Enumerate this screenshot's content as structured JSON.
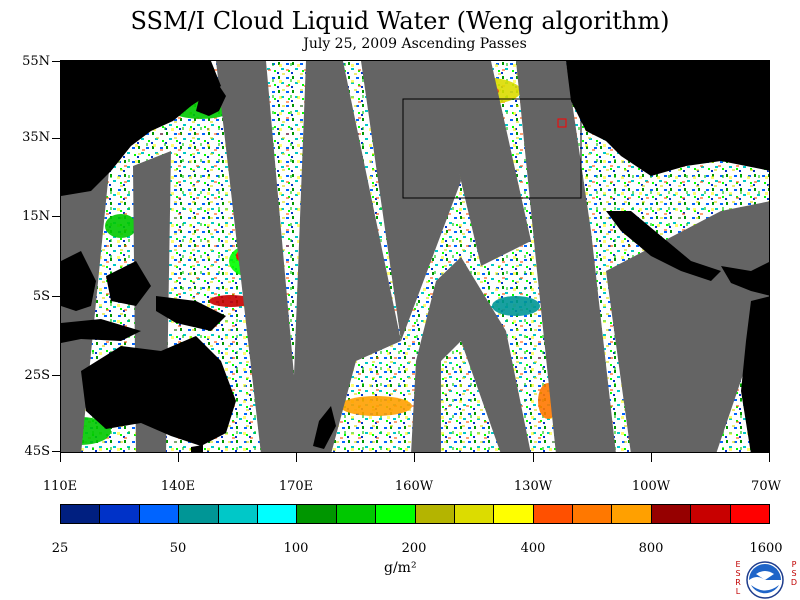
{
  "header": {
    "title": "SSM/I Cloud Liquid Water (Weng algorithm)",
    "subtitle": "July 25, 2009  Ascending Passes"
  },
  "map": {
    "lat_labels": [
      "55N",
      "35N",
      "15N",
      "5S",
      "25S",
      "45S"
    ],
    "lon_labels": [
      "110E",
      "140E",
      "170E",
      "160W",
      "130W",
      "100W",
      "70W"
    ],
    "colors": {
      "land": "#000000",
      "no_data_swath_gap": "#646464",
      "clear_sky": "#ffffff",
      "region_box": "#000000",
      "marker_box": "#ff0000"
    }
  },
  "legend": {
    "colors": [
      "#001f80",
      "#0032c8",
      "#0064ff",
      "#009696",
      "#00c8c8",
      "#00ffff",
      "#009600",
      "#00c800",
      "#00ff00",
      "#b4b400",
      "#dcdc00",
      "#ffff00",
      "#ff5000",
      "#ff7800",
      "#ffa000",
      "#960000",
      "#c80000",
      "#ff0000"
    ],
    "labels": [
      "25",
      "50",
      "100",
      "200",
      "400",
      "800",
      "1600"
    ],
    "units": "g/m²"
  },
  "logo": {
    "name": "noaa-esrl-psd-logo",
    "left_letters": [
      "E",
      "S",
      "R",
      "L"
    ],
    "right_letters": [
      "P",
      "S",
      "D"
    ]
  }
}
